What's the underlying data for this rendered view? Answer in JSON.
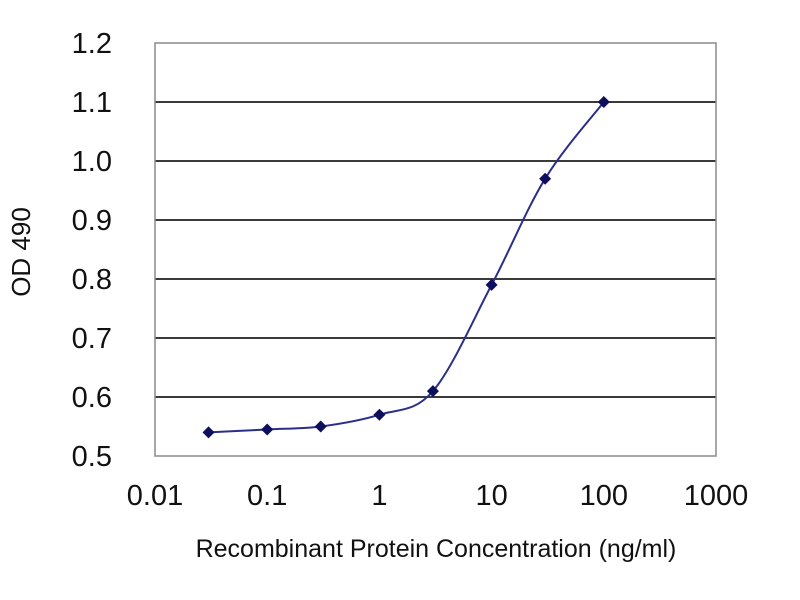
{
  "chart_data": {
    "type": "line",
    "title": "",
    "xlabel": "Recombinant Protein Concentration (ng/ml)",
    "ylabel": "OD 490",
    "x_scale": "log",
    "xlim": [
      0.01,
      1000
    ],
    "ylim": [
      0.5,
      1.2
    ],
    "x_ticks": [
      0.01,
      0.1,
      1,
      10,
      100,
      1000
    ],
    "x_tick_labels": [
      "0.01",
      "0.1",
      "1",
      "10",
      "100",
      "1000"
    ],
    "y_ticks": [
      0.5,
      0.6,
      0.7,
      0.8,
      0.9,
      1.0,
      1.1,
      1.2
    ],
    "y_tick_labels": [
      "0.5",
      "0.6",
      "0.7",
      "0.8",
      "0.9",
      "1.0",
      "1.1",
      "1.2"
    ],
    "grid": "horizontal",
    "legend": "none",
    "series": [
      {
        "x": [
          0.03,
          0.1,
          0.3,
          1,
          3,
          10,
          30,
          100
        ],
        "y": [
          0.54,
          0.545,
          0.55,
          0.57,
          0.61,
          0.79,
          0.97,
          1.1
        ],
        "color": "#2b2f8a"
      }
    ],
    "colors": {
      "line": "#2b2f8a",
      "marker": "#0d0f5c",
      "grid": "#3a3a3a",
      "frame": "#8a8a8a"
    }
  }
}
